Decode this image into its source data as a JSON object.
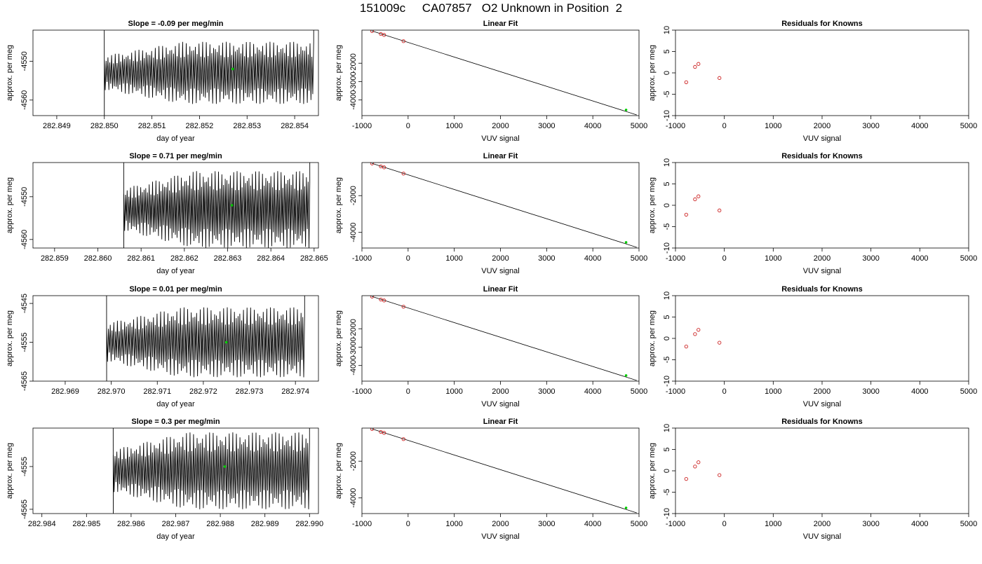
{
  "figure_title": "151009c     CA07857   O2 Unknown in Position  2",
  "colors": {
    "trace": "#000000",
    "unknown_point": "#00cc00",
    "known_point": "#cc2222",
    "axis": "#000000"
  },
  "chart_data": [
    {
      "type": "line",
      "title": "Slope =  -0.09  per meg/min",
      "xlabel": "day of year",
      "ylabel": "approx. per meg",
      "xlim": [
        282.8485,
        282.8545
      ],
      "ylim": [
        -4564,
        -4542
      ],
      "xticks": [
        "282.849",
        "282.850",
        "282.851",
        "282.852",
        "282.853",
        "282.854"
      ],
      "yticks": [
        "-4550",
        "-4560"
      ],
      "trace": {
        "x_start": 282.85,
        "x_end": 282.8544,
        "center": -4553,
        "amplitude": 8,
        "cycles": 115
      },
      "unknown_point": {
        "x": 282.8527,
        "y": -4552
      }
    },
    {
      "type": "scatter",
      "title": "Linear Fit",
      "xlabel": "VUV signal",
      "ylabel": "approx. per meg",
      "xlim": [
        -1000,
        5000
      ],
      "ylim": [
        -4850,
        -200
      ],
      "xticks": [
        "-1000",
        "0",
        "1000",
        "2000",
        "3000",
        "4000",
        "5000"
      ],
      "yticks": [
        "-2000",
        "-3000",
        "-4000"
      ],
      "fit_line": {
        "x": [
          -790,
          4950
        ],
        "y": [
          -240,
          -4810
        ]
      },
      "knowns": [
        {
          "x": -780,
          "y": -250
        },
        {
          "x": -590,
          "y": -410
        },
        {
          "x": -520,
          "y": -460
        },
        {
          "x": -100,
          "y": -800
        }
      ],
      "unknown_point": {
        "x": 4720,
        "y": -4540
      }
    },
    {
      "type": "scatter",
      "title": "Residuals for Knowns",
      "xlabel": "VUV signal",
      "ylabel": "approx. per meg",
      "xlim": [
        -1000,
        5000
      ],
      "ylim": [
        -10,
        10
      ],
      "xticks": [
        "-1000",
        "0",
        "1000",
        "2000",
        "3000",
        "4000",
        "5000"
      ],
      "yticks": [
        "-10",
        "-5",
        "0",
        "5",
        "10"
      ],
      "points": [
        {
          "x": -780,
          "y": -2.2
        },
        {
          "x": -600,
          "y": 1.4
        },
        {
          "x": -530,
          "y": 2.1
        },
        {
          "x": -100,
          "y": -1.2
        }
      ]
    },
    {
      "type": "line",
      "title": "Slope =  0.71  per meg/min",
      "xlabel": "day of year",
      "ylabel": "approx. per meg",
      "xlim": [
        282.8585,
        282.8651
      ],
      "ylim": [
        -4562,
        -4542
      ],
      "xticks": [
        "282.859",
        "282.860",
        "282.861",
        "282.862",
        "282.863",
        "282.864",
        "282.865"
      ],
      "yticks": [
        "-4550",
        "-4560"
      ],
      "trace": {
        "x_start": 282.8606,
        "x_end": 282.8649,
        "center": -4553,
        "amplitude": 9,
        "cycles": 110
      },
      "unknown_point": {
        "x": 282.8631,
        "y": -4552
      }
    },
    {
      "type": "scatter",
      "title": "Linear Fit",
      "xlabel": "VUV signal",
      "ylabel": "approx. per meg",
      "xlim": [
        -1000,
        5000
      ],
      "ylim": [
        -4850,
        -200
      ],
      "xticks": [
        "-1000",
        "0",
        "1000",
        "2000",
        "3000",
        "4000",
        "5000"
      ],
      "yticks": [
        "-2000",
        "-4000"
      ],
      "fit_line": {
        "x": [
          -790,
          4950
        ],
        "y": [
          -240,
          -4810
        ]
      },
      "knowns": [
        {
          "x": -780,
          "y": -250
        },
        {
          "x": -590,
          "y": -410
        },
        {
          "x": -520,
          "y": -460
        },
        {
          "x": -100,
          "y": -800
        }
      ],
      "unknown_point": {
        "x": 4720,
        "y": -4540
      }
    },
    {
      "type": "scatter",
      "title": "Residuals for Knowns",
      "xlabel": "VUV signal",
      "ylabel": "approx. per meg",
      "xlim": [
        -1000,
        5000
      ],
      "ylim": [
        -10,
        10
      ],
      "xticks": [
        "-1000",
        "0",
        "1000",
        "2000",
        "3000",
        "4000",
        "5000"
      ],
      "yticks": [
        "-10",
        "-5",
        "0",
        "5",
        "10"
      ],
      "points": [
        {
          "x": -780,
          "y": -2.2
        },
        {
          "x": -600,
          "y": 1.4
        },
        {
          "x": -530,
          "y": 2.1
        },
        {
          "x": -100,
          "y": -1.2
        }
      ]
    },
    {
      "type": "line",
      "title": "Slope =  0.01  per meg/min",
      "xlabel": "day of year",
      "ylabel": "approx. per meg",
      "xlim": [
        282.9683,
        282.9745
      ],
      "ylim": [
        -4565,
        -4543
      ],
      "xticks": [
        "282.969",
        "282.970",
        "282.971",
        "282.972",
        "282.973",
        "282.974"
      ],
      "yticks": [
        "-4545",
        "-4555",
        "-4565"
      ],
      "trace": {
        "x_start": 282.9699,
        "x_end": 282.9742,
        "center": -4555,
        "amplitude": 9,
        "cycles": 110
      },
      "unknown_point": {
        "x": 282.9725,
        "y": -4555
      }
    },
    {
      "type": "scatter",
      "title": "Linear Fit",
      "xlabel": "VUV signal",
      "ylabel": "approx. per meg",
      "xlim": [
        -1000,
        5000
      ],
      "ylim": [
        -4850,
        -200
      ],
      "xticks": [
        "-1000",
        "0",
        "1000",
        "2000",
        "3000",
        "4000",
        "5000"
      ],
      "yticks": [
        "-2000",
        "-3000",
        "-4000"
      ],
      "fit_line": {
        "x": [
          -790,
          4950
        ],
        "y": [
          -240,
          -4810
        ]
      },
      "knowns": [
        {
          "x": -780,
          "y": -250
        },
        {
          "x": -590,
          "y": -410
        },
        {
          "x": -520,
          "y": -460
        },
        {
          "x": -100,
          "y": -800
        }
      ],
      "unknown_point": {
        "x": 4720,
        "y": -4540
      }
    },
    {
      "type": "scatter",
      "title": "Residuals for Knowns",
      "xlabel": "VUV signal",
      "ylabel": "approx. per meg",
      "xlim": [
        -1000,
        5000
      ],
      "ylim": [
        -10,
        10
      ],
      "xticks": [
        "-1000",
        "0",
        "1000",
        "2000",
        "3000",
        "4000",
        "5000"
      ],
      "yticks": [
        "-10",
        "-5",
        "0",
        "5",
        "10"
      ],
      "points": [
        {
          "x": -780,
          "y": -1.9
        },
        {
          "x": -600,
          "y": 1.0
        },
        {
          "x": -530,
          "y": 2.0
        },
        {
          "x": -100,
          "y": -1.0
        }
      ]
    },
    {
      "type": "line",
      "title": "Slope =  0.3  per meg/min",
      "xlabel": "day of year",
      "ylabel": "approx. per meg",
      "xlim": [
        282.9838,
        282.9902
      ],
      "ylim": [
        -4566,
        -4546
      ],
      "xticks": [
        "282.984",
        "282.985",
        "282.986",
        "282.987",
        "282.988",
        "282.989",
        "282.990"
      ],
      "yticks": [
        "-4555",
        "-4565"
      ],
      "trace": {
        "x_start": 282.9856,
        "x_end": 282.99,
        "center": -4556,
        "amplitude": 9,
        "cycles": 110
      },
      "unknown_point": {
        "x": 282.9881,
        "y": -4555
      }
    },
    {
      "type": "scatter",
      "title": "Linear Fit",
      "xlabel": "VUV signal",
      "ylabel": "approx. per meg",
      "xlim": [
        -1000,
        5000
      ],
      "ylim": [
        -4850,
        -200
      ],
      "xticks": [
        "-1000",
        "0",
        "1000",
        "2000",
        "3000",
        "4000",
        "5000"
      ],
      "yticks": [
        "-2000",
        "-4000"
      ],
      "fit_line": {
        "x": [
          -790,
          4950
        ],
        "y": [
          -240,
          -4810
        ]
      },
      "knowns": [
        {
          "x": -780,
          "y": -250
        },
        {
          "x": -590,
          "y": -410
        },
        {
          "x": -520,
          "y": -460
        },
        {
          "x": -100,
          "y": -800
        }
      ],
      "unknown_point": {
        "x": 4720,
        "y": -4540
      }
    },
    {
      "type": "scatter",
      "title": "Residuals for Knowns",
      "xlabel": "VUV signal",
      "ylabel": "approx. per meg",
      "xlim": [
        -1000,
        5000
      ],
      "ylim": [
        -10,
        10
      ],
      "xticks": [
        "-1000",
        "0",
        "1000",
        "2000",
        "3000",
        "4000",
        "5000"
      ],
      "yticks": [
        "-10",
        "-5",
        "0",
        "5",
        "10"
      ],
      "points": [
        {
          "x": -780,
          "y": -1.9
        },
        {
          "x": -600,
          "y": 1.0
        },
        {
          "x": -530,
          "y": 2.0
        },
        {
          "x": -100,
          "y": -1.0
        }
      ]
    }
  ]
}
